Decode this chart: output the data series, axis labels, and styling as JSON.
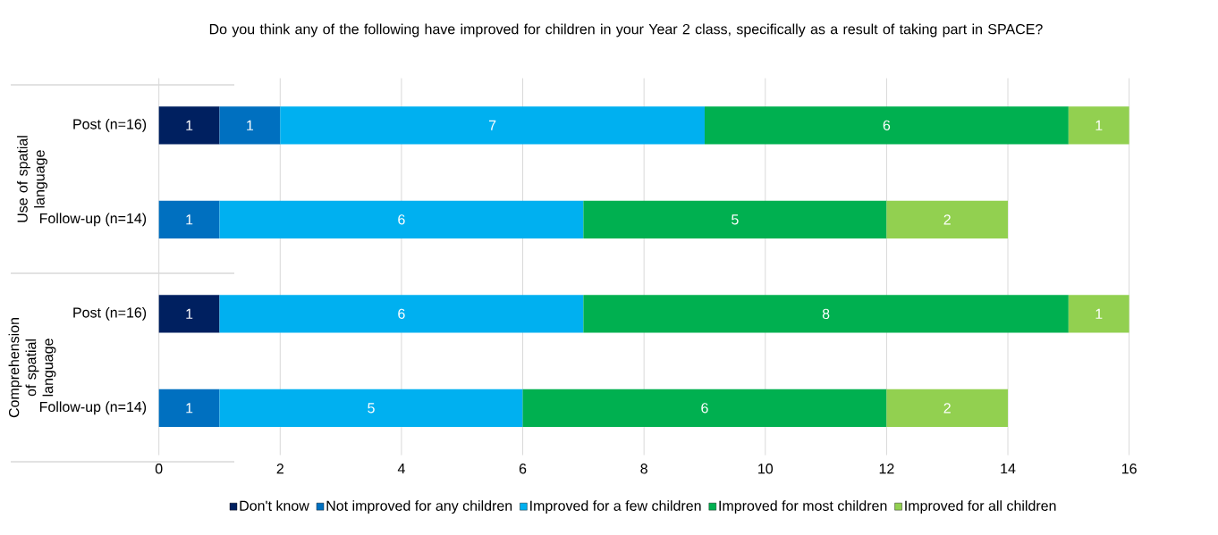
{
  "chart_data": {
    "type": "bar",
    "orientation": "horizontal",
    "stacked": true,
    "title": "Do you think any of the following have improved for children in your Year 2 class, specifically as a result of taking part in SPACE?",
    "categories": [
      "Post (n=16)",
      "Follow-up (n=14)",
      "Post (n=16)",
      "Follow-up (n=14)"
    ],
    "annotations": [
      "Use of spatial language",
      "Comprehension of spatial language"
    ],
    "series": [
      {
        "name": "Don't know",
        "color": "#002060",
        "values": [
          1,
          null,
          1,
          null
        ]
      },
      {
        "name": "Not improved for any children",
        "color": "#0070c0",
        "values": [
          1,
          1,
          null,
          1
        ]
      },
      {
        "name": "Improved for a few children",
        "color": "#00b0f0",
        "values": [
          7,
          6,
          6,
          5
        ]
      },
      {
        "name": "Improved for most children",
        "color": "#00b050",
        "values": [
          6,
          5,
          8,
          6
        ]
      },
      {
        "name": "Improved for all children",
        "color": "#92d050",
        "values": [
          1,
          2,
          1,
          2
        ]
      }
    ],
    "xlim": [
      0,
      16
    ],
    "xticks": [
      0,
      2,
      4,
      6,
      8,
      10,
      12,
      14,
      16
    ],
    "grid": "x",
    "legend": "bottom",
    "data_labels": true
  }
}
